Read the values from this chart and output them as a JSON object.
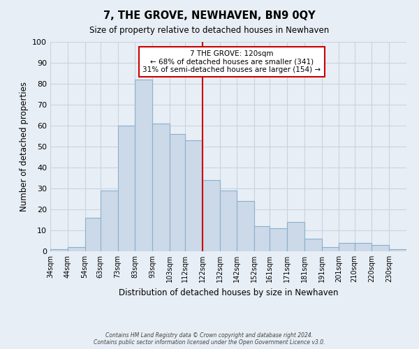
{
  "title": "7, THE GROVE, NEWHAVEN, BN9 0QY",
  "subtitle": "Size of property relative to detached houses in Newhaven",
  "xlabel": "Distribution of detached houses by size in Newhaven",
  "ylabel": "Number of detached properties",
  "footer_line1": "Contains HM Land Registry data © Crown copyright and database right 2024.",
  "footer_line2": "Contains public sector information licensed under the Open Government Licence v3.0.",
  "bin_labels": [
    "34sqm",
    "44sqm",
    "54sqm",
    "63sqm",
    "73sqm",
    "83sqm",
    "93sqm",
    "103sqm",
    "112sqm",
    "122sqm",
    "132sqm",
    "142sqm",
    "152sqm",
    "161sqm",
    "171sqm",
    "181sqm",
    "191sqm",
    "201sqm",
    "210sqm",
    "220sqm",
    "230sqm"
  ],
  "bin_edges": [
    34,
    44,
    54,
    63,
    73,
    83,
    93,
    103,
    112,
    122,
    132,
    142,
    152,
    161,
    171,
    181,
    191,
    201,
    210,
    220,
    230,
    240
  ],
  "bar_heights": [
    1,
    2,
    16,
    29,
    60,
    82,
    61,
    56,
    53,
    34,
    29,
    24,
    12,
    11,
    14,
    6,
    2,
    4,
    4,
    3,
    1
  ],
  "bar_color": "#ccd9e8",
  "bar_edge_color": "#8ab0cc",
  "reference_line_x": 122,
  "reference_line_color": "#cc0000",
  "ylim": [
    0,
    100
  ],
  "yticks": [
    0,
    10,
    20,
    30,
    40,
    50,
    60,
    70,
    80,
    90,
    100
  ],
  "annotation_title": "7 THE GROVE: 120sqm",
  "annotation_line1": "← 68% of detached houses are smaller (341)",
  "annotation_line2": "31% of semi-detached houses are larger (154) →",
  "annotation_box_color": "white",
  "annotation_box_edge_color": "#cc0000",
  "grid_color": "#c8d4e0",
  "background_color": "#e8eef5",
  "plot_bg_color": "#e8eef5"
}
